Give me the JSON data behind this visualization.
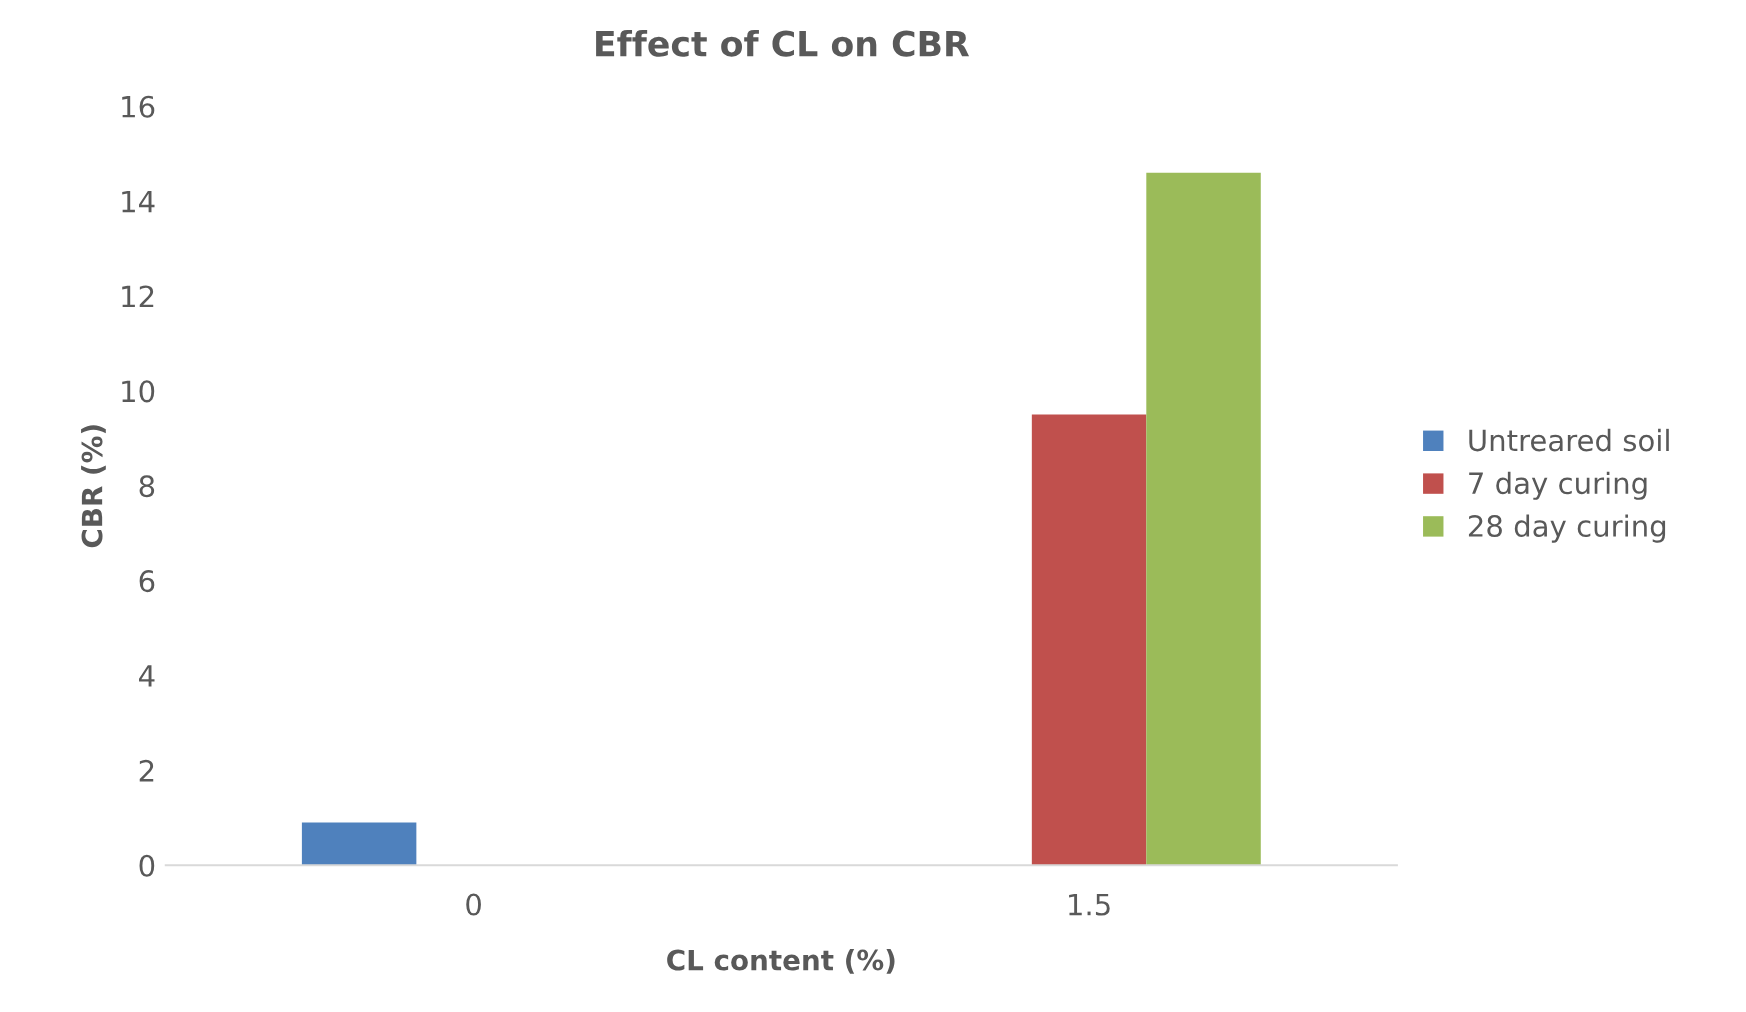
{
  "chart_data": {
    "type": "bar",
    "title": "Effect of CL on CBR",
    "xlabel": "CL content (%)",
    "ylabel": "CBR (%)",
    "categories": [
      "0",
      "1.5"
    ],
    "series": [
      {
        "name": "Untreared soil",
        "color": "#4f81bd",
        "values": [
          0.9,
          null
        ]
      },
      {
        "name": "7 day curing",
        "color": "#c0504d",
        "values": [
          null,
          9.5
        ]
      },
      {
        "name": "28 day curing",
        "color": "#9bbb59",
        "values": [
          null,
          14.6
        ]
      }
    ],
    "ylim": [
      0,
      16
    ],
    "yticks": [
      0,
      2,
      4,
      6,
      8,
      10,
      12,
      14,
      16
    ],
    "grid": false,
    "legend": "right"
  }
}
